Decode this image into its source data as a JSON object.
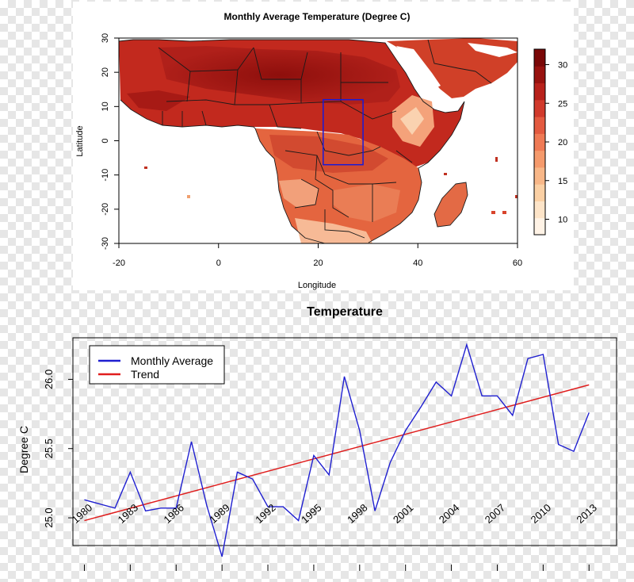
{
  "chart_data": [
    {
      "type": "heatmap",
      "title": "Monthly Average Temperature (Degree C)",
      "xlabel": "Longitude",
      "ylabel": "Latitude",
      "xlim": [
        -20,
        60
      ],
      "ylim": [
        -30,
        30
      ],
      "x_ticks": [
        -20,
        0,
        20,
        40,
        60
      ],
      "y_ticks": [
        -30,
        -20,
        -10,
        0,
        10,
        20,
        30
      ],
      "colorbar": {
        "ticks": [
          10,
          15,
          20,
          25,
          30
        ],
        "range": [
          8,
          32
        ],
        "colors": [
          "#fff3e6",
          "#fde4c8",
          "#fbd0a4",
          "#f8b788",
          "#f59a6c",
          "#ef7a55",
          "#e35a40",
          "#d13a2c",
          "#b8211b",
          "#98120f",
          "#7a0807"
        ]
      },
      "highlight_box": {
        "lon": [
          21,
          29
        ],
        "lat": [
          -7,
          12
        ],
        "color": "#1a1ad6"
      }
    },
    {
      "type": "line",
      "title": "Temperature",
      "xlabel": "",
      "ylabel": "Degree C",
      "xlim": [
        1979.25,
        2014.8
      ],
      "ylim": [
        24.8,
        26.3
      ],
      "y_ticks": [
        25.0,
        25.5,
        26.0
      ],
      "y_tick_labels": [
        "25.0",
        "25.5",
        "26.0"
      ],
      "x_tick_positions": [
        1980,
        1983,
        1986,
        1989,
        1992,
        1995,
        1998,
        2001,
        2004,
        2007,
        2010,
        2013
      ],
      "categories": [
        "1980",
        "1983",
        "1986",
        "1989",
        "1992",
        "1995",
        "1998",
        "2001",
        "2004",
        "2007",
        "2010",
        "2013"
      ],
      "legend": {
        "position": "top-left"
      },
      "colors": {
        "average": "#1f1fd0",
        "trend": "#e01d1d"
      },
      "series": [
        {
          "name": "Monthly Average",
          "x": [
            1980,
            1981,
            1982,
            1983,
            1984,
            1985,
            1986,
            1987,
            1988,
            1989,
            1990,
            1991,
            1992,
            1993,
            1994,
            1995,
            1996,
            1997,
            1998,
            1999,
            2000,
            2001,
            2002,
            2003,
            2004,
            2005,
            2006,
            2007,
            2008,
            2009,
            2010,
            2011,
            2012,
            2013
          ],
          "y": [
            25.13,
            25.1,
            25.07,
            25.33,
            25.05,
            25.07,
            25.07,
            25.55,
            25.09,
            24.72,
            25.33,
            25.28,
            25.08,
            25.08,
            24.98,
            25.45,
            25.31,
            26.02,
            25.63,
            25.05,
            25.4,
            25.63,
            25.8,
            25.98,
            25.88,
            26.25,
            25.88,
            25.88,
            25.74,
            26.15,
            26.18,
            25.53,
            25.48,
            25.76
          ]
        },
        {
          "name": "Trend",
          "x": [
            1980,
            2013
          ],
          "y": [
            24.98,
            25.96
          ]
        }
      ]
    }
  ]
}
